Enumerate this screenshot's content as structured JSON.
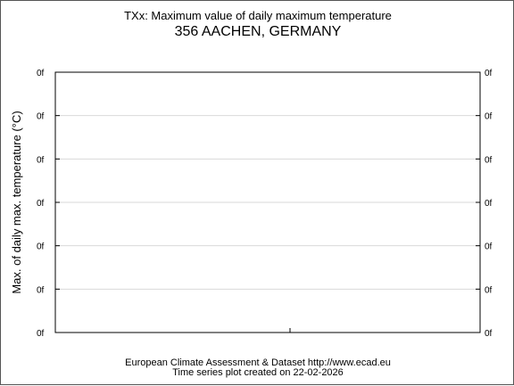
{
  "chart_data": {
    "type": "line",
    "title": "TXx: Maximum value of daily maximum temperature",
    "subtitle": "356 AACHEN, GERMANY",
    "ylabel": "Max. of daily max. temperature (°C)",
    "xlabel": "",
    "y_tick_labels": [
      "0f",
      "0f",
      "0f",
      "0f",
      "0f",
      "0f",
      "0f"
    ],
    "x_tick_labels": [],
    "series": [],
    "grid": true,
    "legend": "none"
  },
  "footer": {
    "line1": "European Climate Assessment & Dataset  http://www.ecad.eu",
    "line2": "Time series plot created on 22-02-2026"
  },
  "colors": {
    "grid": "#d9d9d9",
    "axis": "#000000",
    "border": "#555555"
  }
}
